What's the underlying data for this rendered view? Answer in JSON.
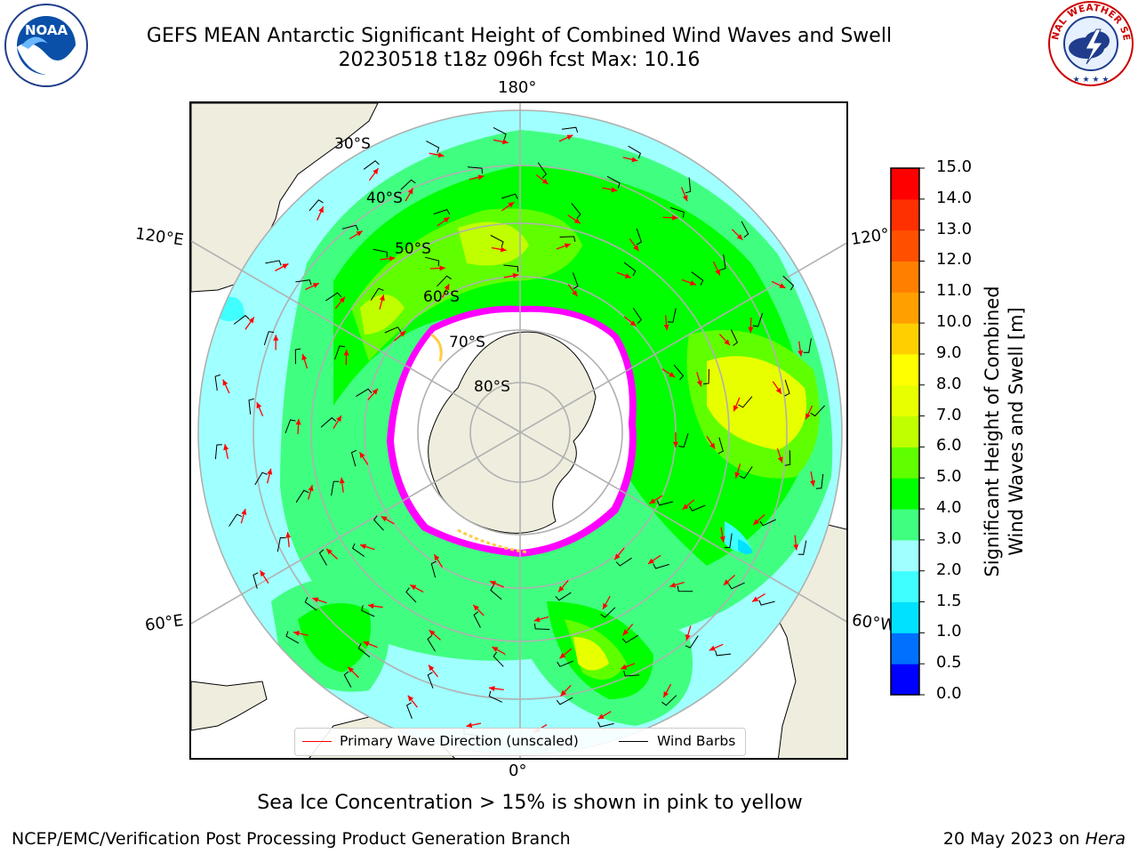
{
  "header": {
    "title_line1": "GEFS MEAN Antarctic Significant Height of Combined Wind Waves and Swell",
    "title_line2": "20230518 t18z 096h fcst   Max: 10.16"
  },
  "logos": {
    "left": {
      "icon": "noaa-logo",
      "text": "NOAA"
    },
    "right": {
      "icon": "national-weather-service-logo",
      "text": "NATIONAL WEATHER SERVICE"
    }
  },
  "map": {
    "projection": "south-polar-stereographic",
    "longitude_labels": {
      "top": "180°",
      "bottom": "0°",
      "left_upper": "120°E",
      "left_lower": "60°E",
      "right_upper": "120°",
      "right_lower": "60°W"
    },
    "latitude_labels": [
      "30°S",
      "40°S",
      "50°S",
      "60°S",
      "70°S",
      "80°S"
    ],
    "colors": {
      "land": "#efedde",
      "ice": "#ff00ff",
      "ice_edge_yellow": "#ffcc44",
      "grid": "#b0b0b0"
    }
  },
  "legend": {
    "wave_label": "Primary Wave Direction (unscaled)",
    "wave_color": "#ff0000",
    "wind_label": "Wind Barbs",
    "wind_color": "#000000"
  },
  "colorbar": {
    "label_line1": "Significant Height of Combined",
    "label_line2": "Wind Waves and Swell [m]",
    "ticks": [
      "0.0",
      "0.5",
      "1.0",
      "1.5",
      "2.0",
      "3.0",
      "4.0",
      "5.0",
      "6.0",
      "7.0",
      "8.0",
      "9.0",
      "10.0",
      "11.0",
      "12.0",
      "13.0",
      "14.0",
      "15.0"
    ],
    "colors": [
      "#0000ff",
      "#0070ff",
      "#00e0ff",
      "#40ffff",
      "#a0ffff",
      "#40ff80",
      "#00ff00",
      "#60ff00",
      "#c0ff00",
      "#e8ff00",
      "#ffff00",
      "#ffd000",
      "#ffa000",
      "#ff8000",
      "#ff5000",
      "#ff3000",
      "#ff0000"
    ]
  },
  "chart_data": {
    "type": "heatmap",
    "variable": "Significant Height of Combined Wind Waves and Swell",
    "units": "m",
    "model": "GEFS MEAN",
    "cycle": "20230518 t18z",
    "forecast_hour": "096h",
    "max": 10.16,
    "levels": [
      0.0,
      0.5,
      1.0,
      1.5,
      2.0,
      3.0,
      4.0,
      5.0,
      6.0,
      7.0,
      8.0,
      9.0,
      10.0,
      11.0,
      12.0,
      13.0,
      14.0,
      15.0
    ]
  },
  "note": "Sea Ice Concentration > 15% is shown in pink to yellow",
  "footer": {
    "left": "NCEP/EMC/Verification Post Processing Product Generation Branch",
    "right_date": "20 May 2023 on ",
    "right_host": "Hera"
  }
}
